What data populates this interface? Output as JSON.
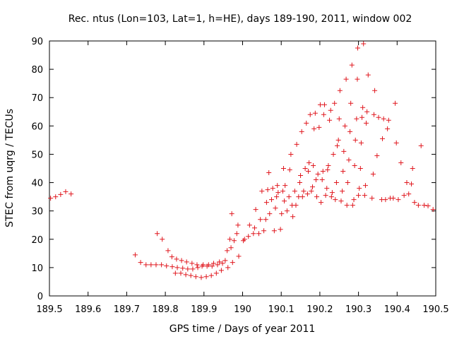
{
  "chart_data": {
    "type": "scatter",
    "title": "Rec. ntus (Lon=103, Lat=1, h=HE), days 189-190, 2011, window 002",
    "xlabel": "GPS time / Days of year 2011",
    "ylabel": "STEC from uqrg / TECUs",
    "xlim": [
      189.5,
      190.5
    ],
    "ylim": [
      0,
      90
    ],
    "xticks": [
      189.5,
      189.6,
      189.7,
      189.8,
      189.9,
      190,
      190.1,
      190.2,
      190.3,
      190.4,
      190.5
    ],
    "xtick_labels": [
      "189.5",
      "189.6",
      "189.7",
      "189.8",
      "189.9",
      "190",
      "190.1",
      "190.2",
      "190.3",
      "190.4",
      "190.5"
    ],
    "yticks": [
      0,
      10,
      20,
      30,
      40,
      50,
      60,
      70,
      80,
      90
    ],
    "ytick_labels": [
      "0",
      "10",
      "20",
      "30",
      "40",
      "50",
      "60",
      "70",
      "80",
      "90"
    ],
    "grid": false,
    "marker_color": "#e0171e",
    "points": [
      [
        189.503,
        34.5
      ],
      [
        189.516,
        35.0
      ],
      [
        189.529,
        35.8
      ],
      [
        189.542,
        36.8
      ],
      [
        189.556,
        36.0
      ],
      [
        189.722,
        14.5
      ],
      [
        189.736,
        11.8
      ],
      [
        189.75,
        11.0
      ],
      [
        189.763,
        11.0
      ],
      [
        189.776,
        11.0
      ],
      [
        189.779,
        22.0
      ],
      [
        189.79,
        11.0
      ],
      [
        189.792,
        20.0
      ],
      [
        189.803,
        10.6
      ],
      [
        189.807,
        16.0
      ],
      [
        189.817,
        13.8
      ],
      [
        189.818,
        10.3
      ],
      [
        189.826,
        8.0
      ],
      [
        189.829,
        13.0
      ],
      [
        189.831,
        10.0
      ],
      [
        189.84,
        8.0
      ],
      [
        189.842,
        12.5
      ],
      [
        189.845,
        9.8
      ],
      [
        189.853,
        7.5
      ],
      [
        189.855,
        12.0
      ],
      [
        189.858,
        9.5
      ],
      [
        189.866,
        7.2
      ],
      [
        189.869,
        11.5
      ],
      [
        189.871,
        9.5
      ],
      [
        189.879,
        6.8
      ],
      [
        189.882,
        11.0
      ],
      [
        189.884,
        10.0
      ],
      [
        189.893,
        6.5
      ],
      [
        189.895,
        10.5
      ],
      [
        189.898,
        11.0
      ],
      [
        189.906,
        6.8
      ],
      [
        189.908,
        10.5
      ],
      [
        189.912,
        11.0
      ],
      [
        189.919,
        7.2
      ],
      [
        189.921,
        10.5
      ],
      [
        189.925,
        11.5
      ],
      [
        189.932,
        8.0
      ],
      [
        189.935,
        11.0
      ],
      [
        189.94,
        12.0
      ],
      [
        189.945,
        9.0
      ],
      [
        189.948,
        11.5
      ],
      [
        189.955,
        12.5
      ],
      [
        189.96,
        16.0
      ],
      [
        189.962,
        10.0
      ],
      [
        189.967,
        20.0
      ],
      [
        189.97,
        17.0
      ],
      [
        189.972,
        29.0
      ],
      [
        189.974,
        11.8
      ],
      [
        189.978,
        19.5
      ],
      [
        189.985,
        22.0
      ],
      [
        189.988,
        25.0
      ],
      [
        189.99,
        14.0
      ],
      [
        190.002,
        19.5
      ],
      [
        190.005,
        20.0
      ],
      [
        190.015,
        21.0
      ],
      [
        190.018,
        25.0
      ],
      [
        190.028,
        22.0
      ],
      [
        190.031,
        24.0
      ],
      [
        190.034,
        30.5
      ],
      [
        190.042,
        22.0
      ],
      [
        190.046,
        27.0
      ],
      [
        190.05,
        37.0
      ],
      [
        190.055,
        23.0
      ],
      [
        190.06,
        27.0
      ],
      [
        190.062,
        33.0
      ],
      [
        190.065,
        37.5
      ],
      [
        190.068,
        43.5
      ],
      [
        190.07,
        29.0
      ],
      [
        190.075,
        34.0
      ],
      [
        190.078,
        38.0
      ],
      [
        190.082,
        23.0
      ],
      [
        190.085,
        31.0
      ],
      [
        190.088,
        35.0
      ],
      [
        190.09,
        39.0
      ],
      [
        190.092,
        36.5
      ],
      [
        190.098,
        23.5
      ],
      [
        190.101,
        29.0
      ],
      [
        190.104,
        37.0
      ],
      [
        190.106,
        45.0
      ],
      [
        190.108,
        33.5
      ],
      [
        190.11,
        39.0
      ],
      [
        190.115,
        30.0
      ],
      [
        190.12,
        35.0
      ],
      [
        190.122,
        44.5
      ],
      [
        190.125,
        50.0
      ],
      [
        190.128,
        32.0
      ],
      [
        190.13,
        28.0
      ],
      [
        190.135,
        37.0
      ],
      [
        190.138,
        32.0
      ],
      [
        190.14,
        53.5
      ],
      [
        190.145,
        35.0
      ],
      [
        190.148,
        40.0
      ],
      [
        190.15,
        42.5
      ],
      [
        190.153,
        58.0
      ],
      [
        190.155,
        35.0
      ],
      [
        190.158,
        37.0
      ],
      [
        190.162,
        45.0
      ],
      [
        190.165,
        61.0
      ],
      [
        190.168,
        36.0
      ],
      [
        190.17,
        44.0
      ],
      [
        190.172,
        47.0
      ],
      [
        190.175,
        64.0
      ],
      [
        190.178,
        37.0
      ],
      [
        190.181,
        38.5
      ],
      [
        190.183,
        46.0
      ],
      [
        190.185,
        59.0
      ],
      [
        190.188,
        64.5
      ],
      [
        190.19,
        41.0
      ],
      [
        190.192,
        35.0
      ],
      [
        190.195,
        43.0
      ],
      [
        190.198,
        59.5
      ],
      [
        190.201,
        67.5
      ],
      [
        190.203,
        33.0
      ],
      [
        190.206,
        41.0
      ],
      [
        190.208,
        44.0
      ],
      [
        190.21,
        64.0
      ],
      [
        190.212,
        67.5
      ],
      [
        190.215,
        35.5
      ],
      [
        190.218,
        38.0
      ],
      [
        190.22,
        44.5
      ],
      [
        190.222,
        46.0
      ],
      [
        190.225,
        62.0
      ],
      [
        190.228,
        65.5
      ],
      [
        190.23,
        35.0
      ],
      [
        190.232,
        36.5
      ],
      [
        190.235,
        50.0
      ],
      [
        190.238,
        68.0
      ],
      [
        190.24,
        34.0
      ],
      [
        190.243,
        40.0
      ],
      [
        190.245,
        53.0
      ],
      [
        190.248,
        55.0
      ],
      [
        190.25,
        62.5
      ],
      [
        190.252,
        72.5
      ],
      [
        190.255,
        33.5
      ],
      [
        190.258,
        37.0
      ],
      [
        190.26,
        44.0
      ],
      [
        190.262,
        51.0
      ],
      [
        190.265,
        60.0
      ],
      [
        190.268,
        76.5
      ],
      [
        190.27,
        32.0
      ],
      [
        190.272,
        40.0
      ],
      [
        190.275,
        48.0
      ],
      [
        190.278,
        58.0
      ],
      [
        190.28,
        68.0
      ],
      [
        190.283,
        81.5
      ],
      [
        190.285,
        32.0
      ],
      [
        190.288,
        34.0
      ],
      [
        190.29,
        46.0
      ],
      [
        190.292,
        55.0
      ],
      [
        190.295,
        62.5
      ],
      [
        190.297,
        76.5
      ],
      [
        190.298,
        87.5
      ],
      [
        190.3,
        35.5
      ],
      [
        190.302,
        38.0
      ],
      [
        190.305,
        45.0
      ],
      [
        190.307,
        54.0
      ],
      [
        190.309,
        63.0
      ],
      [
        190.311,
        66.5
      ],
      [
        190.313,
        89.0
      ],
      [
        190.316,
        35.5
      ],
      [
        190.318,
        39.0
      ],
      [
        190.32,
        61.0
      ],
      [
        190.322,
        65.0
      ],
      [
        190.325,
        78.0
      ],
      [
        190.335,
        34.5
      ],
      [
        190.338,
        43.0
      ],
      [
        190.34,
        64.0
      ],
      [
        190.342,
        72.5
      ],
      [
        190.348,
        49.5
      ],
      [
        190.352,
        63.0
      ],
      [
        190.36,
        34.0
      ],
      [
        190.362,
        55.5
      ],
      [
        190.365,
        62.5
      ],
      [
        190.37,
        34.0
      ],
      [
        190.375,
        59.0
      ],
      [
        190.378,
        62.0
      ],
      [
        190.382,
        34.5
      ],
      [
        190.39,
        34.5
      ],
      [
        190.395,
        68.0
      ],
      [
        190.398,
        54.0
      ],
      [
        190.403,
        34.0
      ],
      [
        190.41,
        47.0
      ],
      [
        190.418,
        35.5
      ],
      [
        190.425,
        40.0
      ],
      [
        190.43,
        36.0
      ],
      [
        190.437,
        39.5
      ],
      [
        190.44,
        45.0
      ],
      [
        190.445,
        33.0
      ],
      [
        190.455,
        32.0
      ],
      [
        190.462,
        53.0
      ],
      [
        190.47,
        32.0
      ],
      [
        190.48,
        31.8
      ],
      [
        190.493,
        30.5
      ]
    ]
  }
}
